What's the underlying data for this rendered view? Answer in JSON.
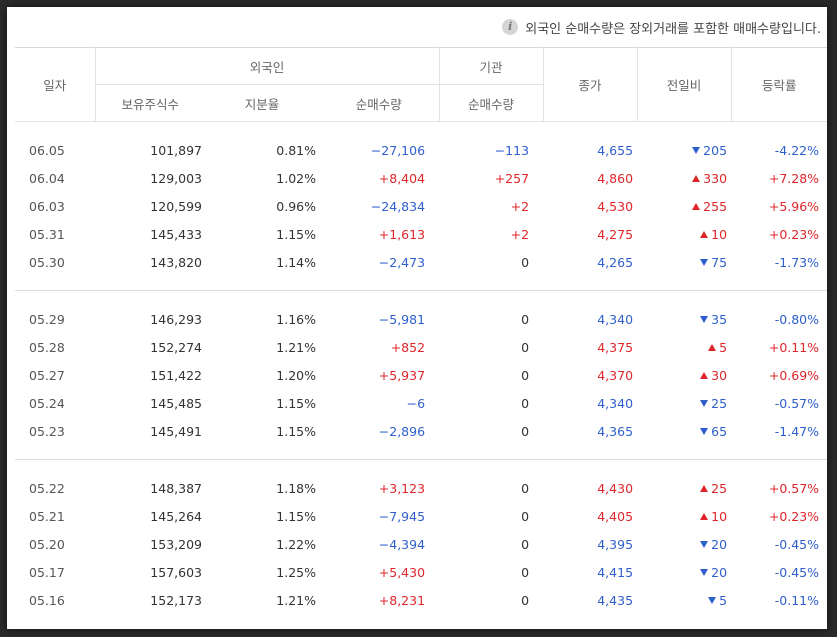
{
  "notice": "외국인 순매수량은 장외거래를 포함한 매매수량입니다.",
  "headers": {
    "date": "일자",
    "foreign": "외국인",
    "institution": "기관",
    "close": "종가",
    "change": "전일비",
    "rate": "등락률",
    "holdings": "보유주식수",
    "share": "지분율",
    "foreign_net": "순매수량",
    "inst_net": "순매수량"
  },
  "groups": [
    [
      {
        "date": "06.05",
        "holdings": "101,897",
        "share": "0.81%",
        "foreign_net": "−27,106",
        "inst_net": "−113",
        "close": "4,655",
        "change": "205",
        "rate": "-4.22%",
        "dir": "down",
        "fdir": "down",
        "idir": "down"
      },
      {
        "date": "06.04",
        "holdings": "129,003",
        "share": "1.02%",
        "foreign_net": "+8,404",
        "inst_net": "+257",
        "close": "4,860",
        "change": "330",
        "rate": "+7.28%",
        "dir": "up",
        "fdir": "up",
        "idir": "up"
      },
      {
        "date": "06.03",
        "holdings": "120,599",
        "share": "0.96%",
        "foreign_net": "−24,834",
        "inst_net": "+2",
        "close": "4,530",
        "change": "255",
        "rate": "+5.96%",
        "dir": "up",
        "fdir": "down",
        "idir": "up"
      },
      {
        "date": "05.31",
        "holdings": "145,433",
        "share": "1.15%",
        "foreign_net": "+1,613",
        "inst_net": "+2",
        "close": "4,275",
        "change": "10",
        "rate": "+0.23%",
        "dir": "up",
        "fdir": "up",
        "idir": "up"
      },
      {
        "date": "05.30",
        "holdings": "143,820",
        "share": "1.14%",
        "foreign_net": "−2,473",
        "inst_net": "0",
        "close": "4,265",
        "change": "75",
        "rate": "-1.73%",
        "dir": "down",
        "fdir": "down",
        "idir": "neutral"
      }
    ],
    [
      {
        "date": "05.29",
        "holdings": "146,293",
        "share": "1.16%",
        "foreign_net": "−5,981",
        "inst_net": "0",
        "close": "4,340",
        "change": "35",
        "rate": "-0.80%",
        "dir": "down",
        "fdir": "down",
        "idir": "neutral"
      },
      {
        "date": "05.28",
        "holdings": "152,274",
        "share": "1.21%",
        "foreign_net": "+852",
        "inst_net": "0",
        "close": "4,375",
        "change": "5",
        "rate": "+0.11%",
        "dir": "up",
        "fdir": "up",
        "idir": "neutral"
      },
      {
        "date": "05.27",
        "holdings": "151,422",
        "share": "1.20%",
        "foreign_net": "+5,937",
        "inst_net": "0",
        "close": "4,370",
        "change": "30",
        "rate": "+0.69%",
        "dir": "up",
        "fdir": "up",
        "idir": "neutral"
      },
      {
        "date": "05.24",
        "holdings": "145,485",
        "share": "1.15%",
        "foreign_net": "−6",
        "inst_net": "0",
        "close": "4,340",
        "change": "25",
        "rate": "-0.57%",
        "dir": "down",
        "fdir": "down",
        "idir": "neutral"
      },
      {
        "date": "05.23",
        "holdings": "145,491",
        "share": "1.15%",
        "foreign_net": "−2,896",
        "inst_net": "0",
        "close": "4,365",
        "change": "65",
        "rate": "-1.47%",
        "dir": "down",
        "fdir": "down",
        "idir": "neutral"
      }
    ],
    [
      {
        "date": "05.22",
        "holdings": "148,387",
        "share": "1.18%",
        "foreign_net": "+3,123",
        "inst_net": "0",
        "close": "4,430",
        "change": "25",
        "rate": "+0.57%",
        "dir": "up",
        "fdir": "up",
        "idir": "neutral"
      },
      {
        "date": "05.21",
        "holdings": "145,264",
        "share": "1.15%",
        "foreign_net": "−7,945",
        "inst_net": "0",
        "close": "4,405",
        "change": "10",
        "rate": "+0.23%",
        "dir": "up",
        "fdir": "down",
        "idir": "neutral"
      },
      {
        "date": "05.20",
        "holdings": "153,209",
        "share": "1.22%",
        "foreign_net": "−4,394",
        "inst_net": "0",
        "close": "4,395",
        "change": "20",
        "rate": "-0.45%",
        "dir": "down",
        "fdir": "down",
        "idir": "neutral"
      },
      {
        "date": "05.17",
        "holdings": "157,603",
        "share": "1.25%",
        "foreign_net": "+5,430",
        "inst_net": "0",
        "close": "4,415",
        "change": "20",
        "rate": "-0.45%",
        "dir": "down",
        "fdir": "up",
        "idir": "neutral"
      },
      {
        "date": "05.16",
        "holdings": "152,173",
        "share": "1.21%",
        "foreign_net": "+8,231",
        "inst_net": "0",
        "close": "4,435",
        "change": "5",
        "rate": "-0.11%",
        "dir": "down",
        "fdir": "up",
        "idir": "neutral"
      }
    ]
  ],
  "colors": {
    "up": "#e0262b",
    "down": "#2f5fce"
  },
  "icons": {
    "info": "info-icon",
    "up": "triangle-up-icon",
    "down": "triangle-down-icon"
  }
}
